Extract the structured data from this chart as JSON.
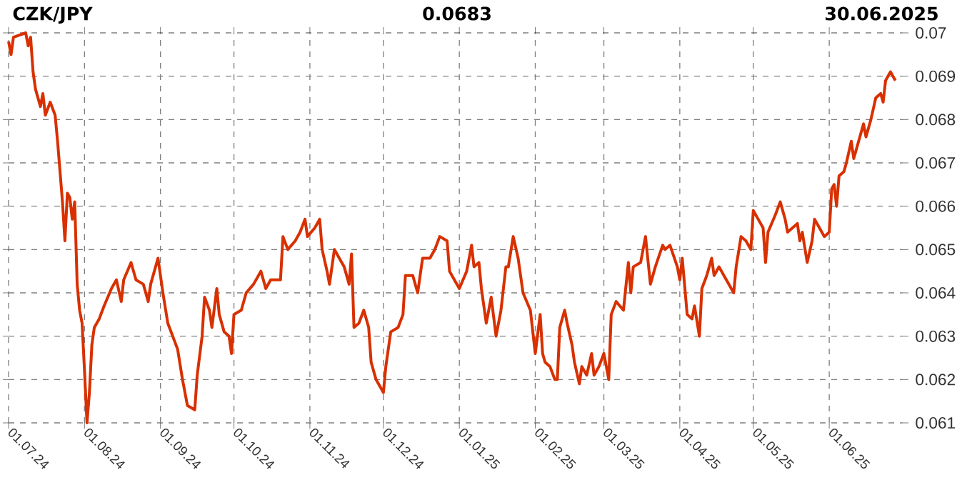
{
  "chart_data": {
    "type": "line",
    "title": "CZK/JPY",
    "subtitle": "0.0683",
    "annotations": [
      "30.06.2025"
    ],
    "x": [
      "2024-07-01",
      "2024-07-02",
      "2024-07-03",
      "2024-07-08",
      "2024-07-09",
      "2024-07-10",
      "2024-07-11",
      "2024-07-12",
      "2024-07-14",
      "2024-07-15",
      "2024-07-16",
      "2024-07-18",
      "2024-07-20",
      "2024-07-21",
      "2024-07-22",
      "2024-07-23",
      "2024-07-24",
      "2024-07-25",
      "2024-07-26",
      "2024-07-27",
      "2024-07-28",
      "2024-07-29",
      "2024-07-30",
      "2024-07-31",
      "2024-08-01",
      "2024-08-02",
      "2024-08-03",
      "2024-08-04",
      "2024-08-05",
      "2024-08-07",
      "2024-08-09",
      "2024-08-12",
      "2024-08-14",
      "2024-08-16",
      "2024-08-17",
      "2024-08-20",
      "2024-08-22",
      "2024-08-25",
      "2024-08-27",
      "2024-08-28",
      "2024-08-30",
      "2024-08-31",
      "2024-09-02",
      "2024-09-04",
      "2024-09-06",
      "2024-09-08",
      "2024-09-10",
      "2024-09-12",
      "2024-09-15",
      "2024-09-16",
      "2024-09-18",
      "2024-09-19",
      "2024-09-21",
      "2024-09-22",
      "2024-09-24",
      "2024-09-25",
      "2024-09-27",
      "2024-09-29",
      "2024-09-30",
      "2024-10-01",
      "2024-10-04",
      "2024-10-06",
      "2024-10-09",
      "2024-10-12",
      "2024-10-14",
      "2024-10-16",
      "2024-10-20",
      "2024-10-21",
      "2024-10-23",
      "2024-10-26",
      "2024-10-28",
      "2024-10-30",
      "2024-10-31",
      "2024-11-03",
      "2024-11-05",
      "2024-11-06",
      "2024-11-08",
      "2024-11-09",
      "2024-11-11",
      "2024-11-13",
      "2024-11-15",
      "2024-11-17",
      "2024-11-18",
      "2024-11-19",
      "2024-11-21",
      "2024-11-23",
      "2024-11-25",
      "2024-11-26",
      "2024-11-28",
      "2024-12-01",
      "2024-12-02",
      "2024-12-04",
      "2024-12-07",
      "2024-12-09",
      "2024-12-10",
      "2024-12-13",
      "2024-12-15",
      "2024-12-17",
      "2024-12-20",
      "2024-12-22",
      "2024-12-24",
      "2024-12-27",
      "2024-12-28",
      "2025-01-01",
      "2025-01-04",
      "2025-01-06",
      "2025-01-07",
      "2025-01-09",
      "2025-01-10",
      "2025-01-12",
      "2025-01-14",
      "2025-01-16",
      "2025-01-18",
      "2025-01-20",
      "2025-01-21",
      "2025-01-23",
      "2025-01-25",
      "2025-01-27",
      "2025-01-30",
      "2025-02-01",
      "2025-02-03",
      "2025-02-04",
      "2025-02-05",
      "2025-02-07",
      "2025-02-09",
      "2025-02-10",
      "2025-02-11",
      "2025-02-13",
      "2025-02-14",
      "2025-02-16",
      "2025-02-17",
      "2025-02-19",
      "2025-02-20",
      "2025-02-22",
      "2025-02-24",
      "2025-02-25",
      "2025-02-27",
      "2025-03-01",
      "2025-03-03",
      "2025-03-04",
      "2025-03-06",
      "2025-03-09",
      "2025-03-11",
      "2025-03-12",
      "2025-03-13",
      "2025-03-16",
      "2025-03-18",
      "2025-03-20",
      "2025-03-22",
      "2025-03-25",
      "2025-03-26",
      "2025-03-28",
      "2025-03-31",
      "2025-04-01",
      "2025-04-02",
      "2025-04-04",
      "2025-04-06",
      "2025-04-07",
      "2025-04-09",
      "2025-04-10",
      "2025-04-12",
      "2025-04-14",
      "2025-04-15",
      "2025-04-17",
      "2025-04-20",
      "2025-04-23",
      "2025-04-24",
      "2025-04-26",
      "2025-04-28",
      "2025-04-30",
      "2025-05-01",
      "2025-05-03",
      "2025-05-05",
      "2025-05-06",
      "2025-05-07",
      "2025-05-10",
      "2025-05-12",
      "2025-05-14",
      "2025-05-15",
      "2025-05-19",
      "2025-05-20",
      "2025-05-21",
      "2025-05-23",
      "2025-05-25",
      "2025-05-26",
      "2025-05-28",
      "2025-05-30",
      "2025-06-01",
      "2025-06-02",
      "2025-06-03",
      "2025-06-04",
      "2025-06-05",
      "2025-06-07",
      "2025-06-08",
      "2025-06-10",
      "2025-06-11",
      "2025-06-13",
      "2025-06-15",
      "2025-06-16",
      "2025-06-18",
      "2025-06-20",
      "2025-06-22",
      "2025-06-23",
      "2025-06-24",
      "2025-06-26",
      "2025-06-27",
      "2025-06-28"
    ],
    "series": [
      {
        "color": "#d83000",
        "values": [
          0.0698,
          0.0695,
          0.0699,
          0.07,
          0.0697,
          0.0699,
          0.0691,
          0.0687,
          0.0683,
          0.0686,
          0.0681,
          0.0684,
          0.0681,
          0.0675,
          0.0668,
          0.0661,
          0.0652,
          0.0663,
          0.0662,
          0.0657,
          0.0661,
          0.0642,
          0.0636,
          0.0633,
          0.0622,
          0.061,
          0.0617,
          0.0628,
          0.0632,
          0.0634,
          0.0637,
          0.0641,
          0.0643,
          0.0638,
          0.0643,
          0.0647,
          0.0643,
          0.0642,
          0.0638,
          0.0642,
          0.0646,
          0.0648,
          0.064,
          0.0633,
          0.063,
          0.0627,
          0.062,
          0.0614,
          0.0613,
          0.0621,
          0.063,
          0.0639,
          0.0636,
          0.0632,
          0.0641,
          0.0635,
          0.0631,
          0.063,
          0.0626,
          0.0635,
          0.0636,
          0.064,
          0.0642,
          0.0645,
          0.0641,
          0.0643,
          0.0643,
          0.0653,
          0.065,
          0.0652,
          0.0654,
          0.0657,
          0.0653,
          0.0655,
          0.0657,
          0.065,
          0.0645,
          0.0642,
          0.065,
          0.0648,
          0.0646,
          0.0642,
          0.0649,
          0.0632,
          0.0633,
          0.0636,
          0.0632,
          0.0624,
          0.062,
          0.0617,
          0.0623,
          0.0631,
          0.0632,
          0.0635,
          0.0644,
          0.0644,
          0.064,
          0.0648,
          0.0648,
          0.065,
          0.0653,
          0.0652,
          0.0645,
          0.0641,
          0.0645,
          0.0651,
          0.0646,
          0.0647,
          0.0641,
          0.0633,
          0.0639,
          0.063,
          0.0636,
          0.0646,
          0.0646,
          0.0653,
          0.0648,
          0.064,
          0.0636,
          0.0626,
          0.0635,
          0.0626,
          0.0624,
          0.0623,
          0.062,
          0.062,
          0.0632,
          0.0636,
          0.0633,
          0.0628,
          0.0624,
          0.0619,
          0.0623,
          0.0621,
          0.0626,
          0.0621,
          0.0623,
          0.0626,
          0.062,
          0.0635,
          0.0638,
          0.0636,
          0.0647,
          0.064,
          0.0646,
          0.0647,
          0.0653,
          0.0642,
          0.0646,
          0.0651,
          0.065,
          0.0651,
          0.0646,
          0.0643,
          0.0648,
          0.0635,
          0.0634,
          0.0637,
          0.063,
          0.0641,
          0.0644,
          0.0648,
          0.0644,
          0.0646,
          0.0643,
          0.064,
          0.0646,
          0.0653,
          0.0652,
          0.065,
          0.0659,
          0.0657,
          0.0655,
          0.0647,
          0.0654,
          0.0658,
          0.0661,
          0.0657,
          0.0654,
          0.0656,
          0.0652,
          0.0654,
          0.0647,
          0.0652,
          0.0657,
          0.0655,
          0.0653,
          0.0654,
          0.0664,
          0.0665,
          0.066,
          0.0667,
          0.0668,
          0.067,
          0.0675,
          0.0671,
          0.0675,
          0.0679,
          0.0676,
          0.068,
          0.0685,
          0.0686,
          0.0684,
          0.0689,
          0.0691,
          0.069,
          0.0689
        ]
      }
    ],
    "xlim": [
      "2024-07-01",
      "2025-07-01"
    ],
    "xticks": [
      {
        "value": "2024-07-01",
        "label": "01.07.24"
      },
      {
        "value": "2024-08-01",
        "label": "01.08.24"
      },
      {
        "value": "2024-09-01",
        "label": "01.09.24"
      },
      {
        "value": "2024-10-01",
        "label": "01.10.24"
      },
      {
        "value": "2024-11-01",
        "label": "01.11.24"
      },
      {
        "value": "2024-12-01",
        "label": "01.12.24"
      },
      {
        "value": "2025-01-01",
        "label": "01.01.25"
      },
      {
        "value": "2025-02-01",
        "label": "01.02.25"
      },
      {
        "value": "2025-03-01",
        "label": "01.03.25"
      },
      {
        "value": "2025-04-01",
        "label": "01.04.25"
      },
      {
        "value": "2025-05-01",
        "label": "01.05.25"
      },
      {
        "value": "2025-06-01",
        "label": "01.06.25"
      }
    ],
    "ylim": [
      0.061,
      0.07
    ],
    "yticks": [
      0.061,
      0.062,
      0.063,
      0.064,
      0.065,
      0.066,
      0.067,
      0.068,
      0.069,
      0.07
    ],
    "grid": true
  }
}
